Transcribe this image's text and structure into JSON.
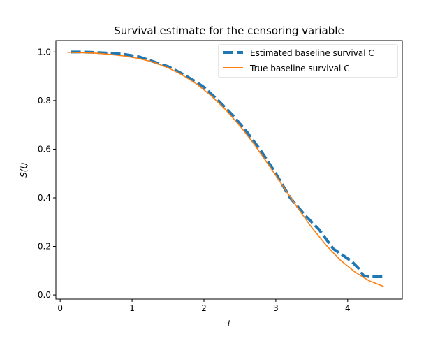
{
  "chart_data": {
    "type": "line",
    "title": "Survival estimate for the censoring variable",
    "xlabel": "t",
    "ylabel": "S(t)",
    "xlim": [
      -0.06,
      4.76
    ],
    "ylim": [
      -0.017,
      1.047
    ],
    "xticks": [
      0,
      1,
      2,
      3,
      4
    ],
    "xtick_labels": [
      "0",
      "1",
      "2",
      "3",
      "4"
    ],
    "yticks": [
      0.0,
      0.2,
      0.4,
      0.6,
      0.8,
      1.0
    ],
    "ytick_labels": [
      "0.0",
      "0.2",
      "0.4",
      "0.6",
      "0.8",
      "1.0"
    ],
    "grid": false,
    "legend_position": "upper right",
    "series": [
      {
        "name": "Estimated baseline survival C",
        "color": "#1f77b4",
        "style": "dashed",
        "x": [
          0.15,
          0.3,
          0.5,
          0.7,
          0.9,
          1.1,
          1.3,
          1.5,
          1.7,
          1.9,
          2.0,
          2.2,
          2.4,
          2.6,
          2.8,
          3.0,
          3.2,
          3.4,
          3.6,
          3.8,
          3.95,
          4.0,
          4.05,
          4.15,
          4.22,
          4.3,
          4.5
        ],
        "y": [
          1.0,
          1.0,
          0.998,
          0.995,
          0.99,
          0.98,
          0.96,
          0.94,
          0.91,
          0.875,
          0.855,
          0.8,
          0.74,
          0.67,
          0.59,
          0.5,
          0.4,
          0.33,
          0.27,
          0.19,
          0.16,
          0.15,
          0.14,
          0.11,
          0.08,
          0.075,
          0.075
        ]
      },
      {
        "name": "True baseline survival C",
        "color": "#ff7f0e",
        "style": "solid",
        "x": [
          0.1,
          0.3,
          0.5,
          0.7,
          0.9,
          1.1,
          1.3,
          1.5,
          1.7,
          1.9,
          2.1,
          2.3,
          2.5,
          2.7,
          2.9,
          3.1,
          3.3,
          3.5,
          3.7,
          3.9,
          4.1,
          4.3,
          4.5
        ],
        "y": [
          0.999,
          0.997,
          0.995,
          0.99,
          0.983,
          0.973,
          0.958,
          0.935,
          0.905,
          0.868,
          0.82,
          0.763,
          0.696,
          0.62,
          0.535,
          0.448,
          0.36,
          0.278,
          0.205,
          0.143,
          0.095,
          0.058,
          0.035
        ]
      }
    ]
  }
}
